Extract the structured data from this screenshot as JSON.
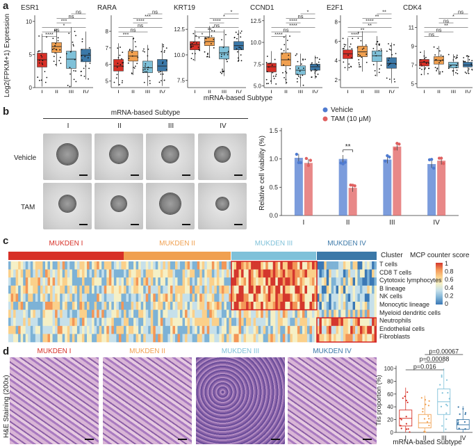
{
  "panel_letters": {
    "a": "a",
    "b": "b",
    "c": "c",
    "d": "d"
  },
  "panel_a": {
    "ylabel": "Log2(FPKM+1) Expression",
    "xlabel": "mRNA-based Subtype",
    "subtypes": [
      "I",
      "II",
      "III",
      "IV"
    ],
    "colors": {
      "I": "#d73027",
      "II": "#f0a050",
      "III": "#7fc1d9",
      "IV": "#3b78a8"
    },
    "genes": [
      {
        "name": "ESR1",
        "yticks": [
          "0",
          "5",
          "10"
        ],
        "ylim": [
          0,
          10.5
        ],
        "medians": [
          4.2,
          6.2,
          4.3,
          4.9
        ],
        "q1": [
          3.1,
          5.3,
          2.9,
          3.9
        ],
        "q3": [
          5.2,
          6.8,
          5.5,
          5.8
        ],
        "sig": [
          "ns",
          "ns",
          "***",
          "*",
          "ns",
          "****"
        ]
      },
      {
        "name": "RARA",
        "yticks": [
          "5",
          "6",
          "7",
          "8"
        ],
        "ylim": [
          4.6,
          8.8
        ],
        "medians": [
          5.9,
          6.5,
          5.8,
          5.9
        ],
        "q1": [
          5.6,
          6.2,
          5.5,
          5.6
        ],
        "q3": [
          6.3,
          6.8,
          6.2,
          6.3
        ],
        "sig": [
          "ns",
          "***",
          "****",
          "ns",
          "ns",
          "***"
        ]
      },
      {
        "name": "KRT19",
        "yticks": [
          "7.5",
          "10.0",
          "12.5"
        ],
        "ylim": [
          6.8,
          13.6
        ],
        "medians": [
          11.0,
          11.3,
          10.2,
          10.9
        ],
        "q1": [
          10.5,
          10.9,
          9.6,
          10.5
        ],
        "q3": [
          11.3,
          11.7,
          10.8,
          11.3
        ],
        "sig": [
          "*",
          "*",
          "****",
          "ns",
          "**",
          "*"
        ]
      },
      {
        "name": "CCND1",
        "yticks": [
          "5.0",
          "7.5",
          "10.0",
          "12.5"
        ],
        "ylim": [
          4.8,
          12.8
        ],
        "medians": [
          7.2,
          8.0,
          6.8,
          7.2
        ],
        "q1": [
          6.6,
          7.3,
          6.3,
          6.8
        ],
        "q3": [
          7.6,
          8.8,
          7.3,
          7.5
        ],
        "sig": [
          "*",
          "ns",
          "****",
          "****",
          "ns",
          "****"
        ]
      },
      {
        "name": "E2F1",
        "yticks": [
          "2",
          "4",
          "6",
          "8"
        ],
        "ylim": [
          1.2,
          8.4
        ],
        "medians": [
          4.7,
          4.9,
          4.5,
          3.7
        ],
        "q1": [
          4.2,
          4.4,
          3.9,
          3.2
        ],
        "q3": [
          5.1,
          5.5,
          5.0,
          4.3
        ],
        "sig": [
          "**",
          "**",
          "****",
          "**",
          "**",
          "****"
        ]
      },
      {
        "name": "CDK4",
        "yticks": [
          "5",
          "7",
          "9",
          "11"
        ],
        "ylim": [
          4.6,
          12.0
        ],
        "medians": [
          7.3,
          7.5,
          7.0,
          7.0
        ],
        "q1": [
          6.9,
          7.1,
          6.7,
          6.8
        ],
        "q3": [
          7.6,
          7.9,
          7.3,
          7.3
        ],
        "sig": [
          "ns",
          "*",
          "ns",
          "**",
          "ns",
          "ns"
        ]
      }
    ]
  },
  "panel_b": {
    "header": "mRNA-based Subtype",
    "subtypes": [
      "I",
      "II",
      "III",
      "IV"
    ],
    "rows": [
      "Vehicle",
      "TAM"
    ],
    "chart_data": {
      "type": "bar",
      "categories": [
        "I",
        "II",
        "III",
        "IV"
      ],
      "series": [
        {
          "name": "Vehicle",
          "values": [
            1.02,
            1.0,
            0.99,
            0.91
          ],
          "color": "#4f7bd0"
        },
        {
          "name": "TAM (10 μM)",
          "values": [
            0.93,
            0.49,
            1.22,
            0.97
          ],
          "color": "#e06060"
        }
      ],
      "ylabel": "Relative cell viability (%)",
      "yticks": [
        "0.0",
        "0.5",
        "1.0",
        "1.5"
      ],
      "ylim": [
        0,
        1.5
      ],
      "annotation": "**"
    }
  },
  "panel_c": {
    "clusters": [
      "MUKDEN I",
      "MUKDEN II",
      "MUKDEN III",
      "MUKDEN IV"
    ],
    "cluster_colors": [
      "#d73027",
      "#f0a050",
      "#7fc1d9",
      "#3b78a8"
    ],
    "legend_cluster": "Cluster",
    "legend_title": "MCP counter score",
    "scale_ticks": [
      "1",
      "0.8",
      "0.6",
      "0.4",
      "0.2",
      "0"
    ],
    "rows": [
      "T cells",
      "CD8 T cells",
      "Cytotoxic lymphocytes",
      "B lineage",
      "NK cells",
      "Monocytic lineage",
      "Myeloid dendritic cells",
      "Neutrophils",
      "Endothelial cells",
      "Fibroblasts"
    ]
  },
  "panel_d": {
    "ylabel_left": "H&E Staining (200x)",
    "titles": [
      "MUKDEN I",
      "MUKDEN II",
      "MUKDEN III",
      "MUKDEN IV"
    ],
    "title_colors": [
      "#d73027",
      "#f0a050",
      "#7fc1d9",
      "#3b78a8"
    ],
    "chart_data": {
      "type": "box",
      "categories": [
        "I",
        "II",
        "III",
        "IV"
      ],
      "medians": [
        22,
        15,
        48,
        12
      ],
      "q1": [
        10,
        7,
        28,
        5
      ],
      "q3": [
        35,
        28,
        68,
        20
      ],
      "ylabel": "Tils proportion (%)",
      "xlabel": "mRNA-based Subtype",
      "yticks": [
        "0",
        "20",
        "40",
        "60",
        "80",
        "100"
      ],
      "ylim": [
        0,
        100
      ],
      "pvalues": [
        "p=0.016",
        "p=0.00088",
        "p=0.00067"
      ]
    }
  }
}
